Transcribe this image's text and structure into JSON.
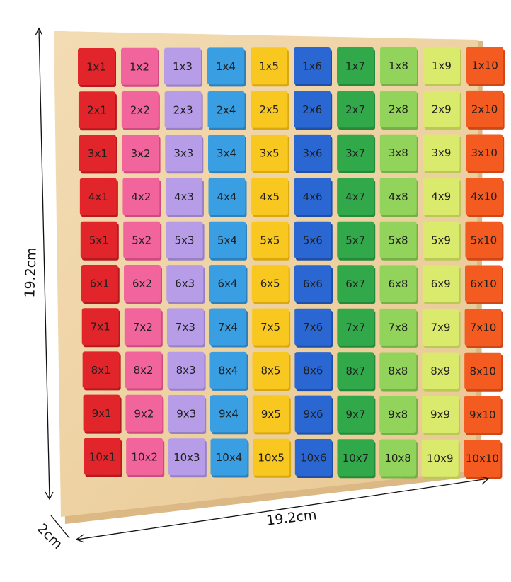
{
  "dimensions": {
    "height": "19.2cm",
    "width": "19.2cm",
    "depth": "2cm"
  },
  "tiles": [
    [
      "1x1",
      "1x2",
      "1x3",
      "1x4",
      "1x5",
      "1x6",
      "1x7",
      "1x8",
      "1x9",
      "1x10"
    ],
    [
      "2x1",
      "2x2",
      "2x3",
      "2x4",
      "2x5",
      "2x6",
      "2x7",
      "2x8",
      "2x9",
      "2x10"
    ],
    [
      "3x1",
      "3x2",
      "3x3",
      "3x4",
      "3x5",
      "3x6",
      "3x7",
      "3x8",
      "3x9",
      "3x10"
    ],
    [
      "4x1",
      "4x2",
      "4x3",
      "4x4",
      "4x5",
      "4x6",
      "4x7",
      "4x8",
      "4x9",
      "4x10"
    ],
    [
      "5x1",
      "5x2",
      "5x3",
      "5x4",
      "5x5",
      "5x6",
      "5x7",
      "5x8",
      "5x9",
      "5x10"
    ],
    [
      "6x1",
      "6x2",
      "6x3",
      "6x4",
      "6x5",
      "6x6",
      "6x7",
      "6x8",
      "6x9",
      "6x10"
    ],
    [
      "7x1",
      "7x2",
      "7x3",
      "7x4",
      "7x5",
      "7x6",
      "7x7",
      "7x8",
      "7x9",
      "7x10"
    ],
    [
      "8x1",
      "8x2",
      "8x3",
      "8x4",
      "8x5",
      "8x6",
      "8x7",
      "8x8",
      "8x9",
      "8x10"
    ],
    [
      "9x1",
      "9x2",
      "9x3",
      "9x4",
      "9x5",
      "9x6",
      "9x7",
      "9x8",
      "9x9",
      "9x10"
    ],
    [
      "10x1",
      "10x2",
      "10x3",
      "10x4",
      "10x5",
      "10x6",
      "10x7",
      "10x8",
      "10x9",
      "10x10"
    ]
  ]
}
